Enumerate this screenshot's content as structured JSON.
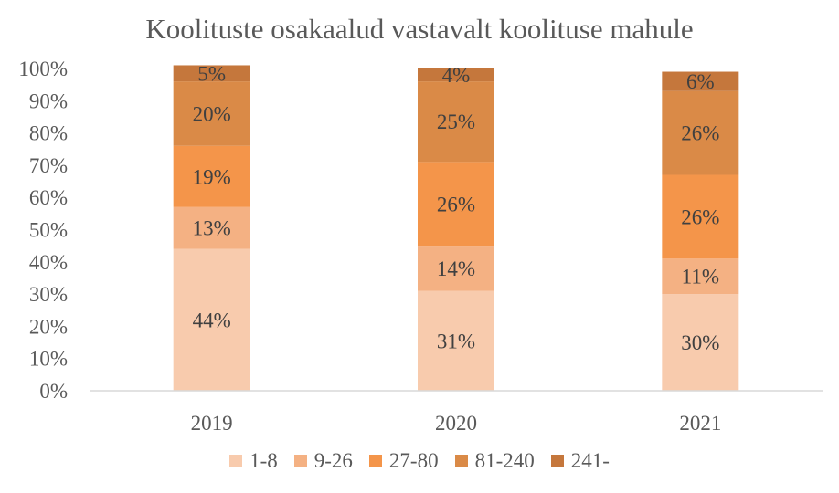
{
  "chart_data": {
    "type": "bar",
    "stacked": true,
    "title": "Koolituste osakaalud vastavalt koolituse mahule",
    "categories": [
      "2019",
      "2020",
      "2021"
    ],
    "series": [
      {
        "name": "1-8",
        "color": "#F8CBAD",
        "values": [
          44,
          31,
          30
        ],
        "labels": [
          "44%",
          "31%",
          "30%"
        ]
      },
      {
        "name": "9-26",
        "color": "#F4B183",
        "values": [
          13,
          14,
          11
        ],
        "labels": [
          "13%",
          "14%",
          "11%"
        ]
      },
      {
        "name": "27-80",
        "color": "#F4954A",
        "values": [
          19,
          26,
          26
        ],
        "labels": [
          "19%",
          "26%",
          "26%"
        ]
      },
      {
        "name": "81-240",
        "color": "#DA8A47",
        "values": [
          20,
          25,
          26
        ],
        "labels": [
          "20%",
          "25%",
          "26%"
        ]
      },
      {
        "name": "241-",
        "color": "#C5773C",
        "values": [
          5,
          4,
          6
        ],
        "labels": [
          "5%",
          "4%",
          "6%"
        ]
      }
    ],
    "ylim": [
      0,
      100
    ],
    "yticks": [
      "0%",
      "10%",
      "20%",
      "30%",
      "40%",
      "50%",
      "60%",
      "70%",
      "80%",
      "90%",
      "100%"
    ],
    "grid": false,
    "legend_position": "bottom"
  }
}
